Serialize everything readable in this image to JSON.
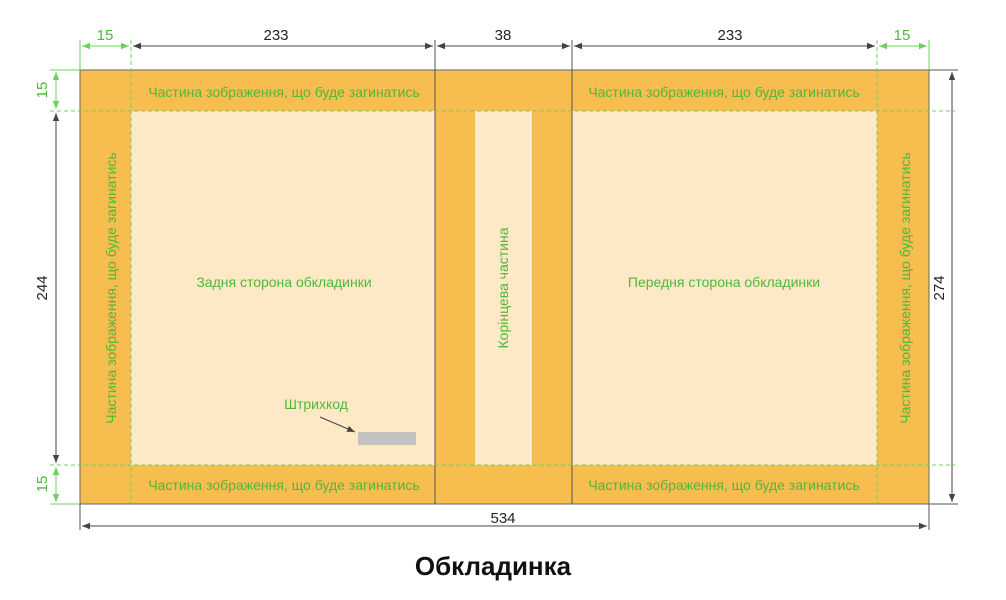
{
  "title": "Обкладинка",
  "dimensions": {
    "top_left_fold": "15",
    "back_width": "233",
    "spine_width": "38",
    "front_width": "233",
    "top_right_fold": "15",
    "left_top_fold": "15",
    "left_height": "244",
    "left_bottom_fold": "15",
    "right_height": "274",
    "total_width": "534"
  },
  "labels": {
    "fold_area": "Частина зображення, що буде загинатись",
    "back_cover": "Задня сторона обкладинки",
    "front_cover": "Передня сторона обкладинки",
    "spine": "Корінцева частина",
    "barcode": "Штрихкод"
  },
  "colors": {
    "fold": "#f7bd4e",
    "panel": "#fde9c6",
    "label_green": "#4fb83a",
    "dash_green": "#6fd061",
    "barcode": "#c2c2c2",
    "line": "#555555"
  }
}
